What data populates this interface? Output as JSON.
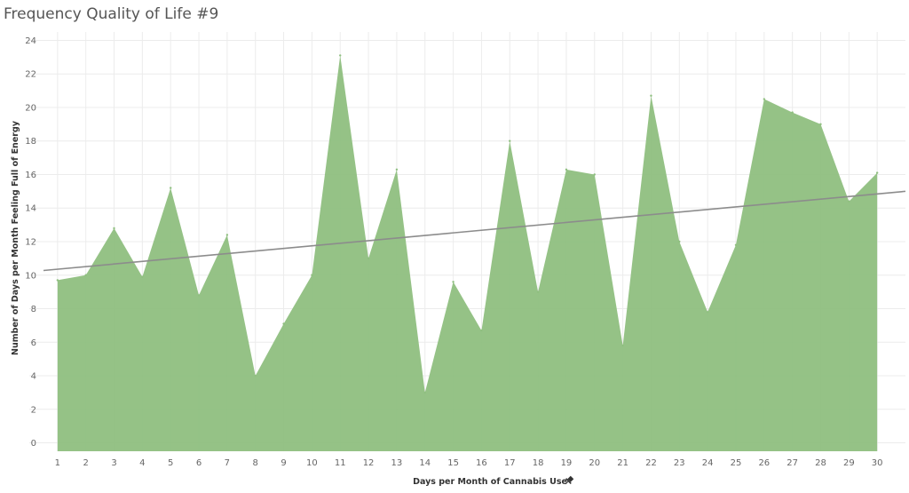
{
  "chart_data": {
    "type": "area",
    "title": "Frequency Quality of Life #9",
    "xlabel": "Days per Month of Cannabis Use",
    "ylabel": "Number of Days per Month Feeling Full of Energy",
    "x": [
      1,
      2,
      3,
      4,
      5,
      6,
      7,
      8,
      9,
      10,
      11,
      12,
      13,
      14,
      15,
      16,
      17,
      18,
      19,
      20,
      21,
      22,
      23,
      24,
      25,
      26,
      27,
      28,
      29,
      30
    ],
    "series": [
      {
        "values": [
          9.7,
          10.0,
          12.8,
          9.9,
          15.2,
          8.8,
          12.4,
          4.0,
          7.1,
          10.0,
          23.1,
          11.0,
          16.3,
          3.0,
          9.6,
          6.7,
          18.0,
          9.0,
          16.3,
          16.0,
          5.8,
          20.7,
          12.0,
          7.8,
          11.8,
          20.5,
          19.7,
          19.0,
          14.4,
          16.1
        ],
        "color": "#8fbf80"
      }
    ],
    "trend_line": {
      "start": [
        0,
        10.2
      ],
      "end": [
        31,
        15.0
      ],
      "color": "#8c8c8c"
    },
    "xticks": [
      1,
      2,
      3,
      4,
      5,
      6,
      7,
      8,
      9,
      10,
      11,
      12,
      13,
      14,
      15,
      16,
      17,
      18,
      19,
      20,
      21,
      22,
      23,
      24,
      25,
      26,
      27,
      28,
      29,
      30
    ],
    "yticks": [
      0,
      2,
      4,
      6,
      8,
      10,
      12,
      14,
      16,
      18,
      20,
      22,
      24
    ],
    "xlim": [
      0,
      31
    ],
    "ylim": [
      -0.5,
      24.5
    ],
    "grid": true,
    "legend": "none"
  },
  "axis_pin_icon": "pin-icon"
}
